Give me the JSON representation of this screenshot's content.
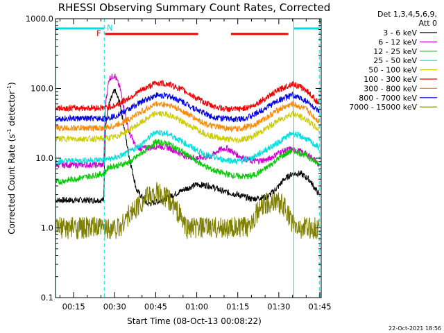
{
  "chart_data": {
    "type": "line",
    "title": "RHESSI Observing Summary Count Rates, Corrected",
    "xlabel": "Start Time (08-Oct-13 00:08:22)",
    "ylabel": "Corrected Count Rate (s",
    "ylabel_sup1": "-1",
    "ylabel_mid": " detector",
    "ylabel_sup2": "-1",
    "ylabel_end": ")",
    "yscale": "log",
    "ylim": [
      0.1,
      1000
    ],
    "yticks": [
      "1000.0",
      "100.0",
      "10.0",
      "1.0",
      "0.1"
    ],
    "ytick_values": [
      1000,
      100,
      10,
      1,
      0.1
    ],
    "xlim_minutes": [
      8.37,
      105.5
    ],
    "xticks": [
      "00:15",
      "00:30",
      "00:45",
      "01:00",
      "01:15",
      "01:30",
      "01:45"
    ],
    "xtick_minutes": [
      15,
      30,
      45,
      60,
      75,
      90,
      105
    ],
    "legend_header_1": "Det 1,3,4,5,6,9,",
    "legend_header_2": "Att 0",
    "legend_position": "right",
    "flags": {
      "n_label": "N",
      "f_label": "F",
      "night_intervals": [
        [
          8.4,
          26.2
        ],
        [
          95.5,
          104.8
        ]
      ],
      "flare_intervals": [
        [
          26.5,
          60.5
        ],
        [
          72.5,
          93.5
        ]
      ]
    },
    "day_boundaries": [
      8.4,
      26.2,
      95.5,
      104.8
    ],
    "series": [
      {
        "name": "3 - 6 keV",
        "color": "#000000",
        "points": [
          [
            8.4,
            2.5
          ],
          [
            26,
            2.5
          ],
          [
            26.6,
            30
          ],
          [
            28,
            60
          ],
          [
            30,
            95
          ],
          [
            32,
            60
          ],
          [
            35,
            12
          ],
          [
            38,
            3.5
          ],
          [
            42,
            2.2
          ],
          [
            46,
            2.4
          ],
          [
            50,
            2.8
          ],
          [
            55,
            3.5
          ],
          [
            60,
            4.2
          ],
          [
            65,
            4.0
          ],
          [
            70,
            3.3
          ],
          [
            75,
            3.0
          ],
          [
            80,
            2.6
          ],
          [
            86,
            2.8
          ],
          [
            90,
            4.0
          ],
          [
            92,
            5.0
          ],
          [
            95,
            6.0
          ],
          [
            98,
            6.0
          ],
          [
            101,
            5.0
          ],
          [
            103,
            3.8
          ],
          [
            104.8,
            3.0
          ]
        ]
      },
      {
        "name": "6 - 12 keV",
        "color": "#cc00cc",
        "points": [
          [
            8.4,
            8
          ],
          [
            26,
            8
          ],
          [
            26.6,
            60
          ],
          [
            28,
            140
          ],
          [
            30,
            155
          ],
          [
            32,
            100
          ],
          [
            35,
            25
          ],
          [
            38,
            14
          ],
          [
            42,
            14
          ],
          [
            46,
            15
          ],
          [
            50,
            14
          ],
          [
            55,
            11
          ],
          [
            60,
            10
          ],
          [
            65,
            10.5
          ],
          [
            68,
            13
          ],
          [
            71,
            14
          ],
          [
            75,
            11
          ],
          [
            80,
            9
          ],
          [
            86,
            9.5
          ],
          [
            90,
            12
          ],
          [
            94,
            13.5
          ],
          [
            98,
            12.5
          ],
          [
            101,
            11
          ],
          [
            103,
            9.5
          ],
          [
            104.8,
            8
          ]
        ]
      },
      {
        "name": "12 - 25 keV",
        "color": "#00cc00",
        "points": [
          [
            8.4,
            4.5
          ],
          [
            26,
            6
          ],
          [
            28,
            7.5
          ],
          [
            32,
            8
          ],
          [
            36,
            9
          ],
          [
            40,
            12
          ],
          [
            45,
            17
          ],
          [
            50,
            16
          ],
          [
            55,
            12
          ],
          [
            60,
            9
          ],
          [
            65,
            7
          ],
          [
            70,
            6
          ],
          [
            75,
            5.5
          ],
          [
            80,
            5.5
          ],
          [
            85,
            7
          ],
          [
            90,
            10
          ],
          [
            95,
            13
          ],
          [
            100,
            11
          ],
          [
            104.8,
            8
          ]
        ]
      },
      {
        "name": "25 - 50 keV",
        "color": "#00dddd",
        "points": [
          [
            8.4,
            9
          ],
          [
            26,
            9.5
          ],
          [
            30,
            10
          ],
          [
            35,
            12
          ],
          [
            40,
            16
          ],
          [
            45,
            24
          ],
          [
            50,
            22
          ],
          [
            55,
            17
          ],
          [
            60,
            13
          ],
          [
            65,
            10.5
          ],
          [
            70,
            9.5
          ],
          [
            75,
            9
          ],
          [
            80,
            10
          ],
          [
            85,
            13
          ],
          [
            90,
            17
          ],
          [
            95,
            23
          ],
          [
            100,
            19
          ],
          [
            104.8,
            14
          ]
        ]
      },
      {
        "name": "50 - 100 keV",
        "color": "#cccc00",
        "points": [
          [
            8.4,
            19
          ],
          [
            26,
            19
          ],
          [
            30,
            20
          ],
          [
            35,
            25
          ],
          [
            40,
            33
          ],
          [
            45,
            44
          ],
          [
            50,
            42
          ],
          [
            55,
            33
          ],
          [
            60,
            26
          ],
          [
            65,
            21
          ],
          [
            70,
            19
          ],
          [
            75,
            18
          ],
          [
            80,
            20
          ],
          [
            85,
            26
          ],
          [
            90,
            35
          ],
          [
            95,
            44
          ],
          [
            100,
            36
          ],
          [
            104.8,
            25
          ]
        ]
      },
      {
        "name": "100 - 300 keV",
        "color": "#ee0000",
        "points": [
          [
            8.4,
            52
          ],
          [
            26,
            53
          ],
          [
            30,
            56
          ],
          [
            35,
            72
          ],
          [
            40,
            95
          ],
          [
            45,
            120
          ],
          [
            50,
            115
          ],
          [
            55,
            95
          ],
          [
            60,
            72
          ],
          [
            65,
            57
          ],
          [
            70,
            51
          ],
          [
            75,
            50
          ],
          [
            80,
            55
          ],
          [
            85,
            72
          ],
          [
            90,
            95
          ],
          [
            95,
            118
          ],
          [
            100,
            95
          ],
          [
            104.8,
            60
          ]
        ]
      },
      {
        "name": "300 - 800 keV",
        "color": "#ff8800",
        "points": [
          [
            8.4,
            27
          ],
          [
            26,
            27
          ],
          [
            30,
            29
          ],
          [
            35,
            36
          ],
          [
            40,
            47
          ],
          [
            45,
            60
          ],
          [
            50,
            58
          ],
          [
            55,
            47
          ],
          [
            60,
            36
          ],
          [
            65,
            29
          ],
          [
            70,
            27
          ],
          [
            75,
            26
          ],
          [
            80,
            29
          ],
          [
            85,
            37
          ],
          [
            90,
            50
          ],
          [
            95,
            60
          ],
          [
            100,
            50
          ],
          [
            104.8,
            33
          ]
        ]
      },
      {
        "name": "800 - 7000 keV",
        "color": "#0000dd",
        "points": [
          [
            8.4,
            37
          ],
          [
            26,
            37
          ],
          [
            30,
            40
          ],
          [
            35,
            50
          ],
          [
            40,
            65
          ],
          [
            45,
            80
          ],
          [
            50,
            78
          ],
          [
            55,
            64
          ],
          [
            60,
            50
          ],
          [
            65,
            40
          ],
          [
            70,
            37
          ],
          [
            75,
            36
          ],
          [
            80,
            40
          ],
          [
            85,
            52
          ],
          [
            90,
            68
          ],
          [
            95,
            80
          ],
          [
            100,
            67
          ],
          [
            104.8,
            45
          ]
        ]
      },
      {
        "name": "7000 - 15000 keV",
        "color": "#808000",
        "points": [
          [
            8.4,
            1.0
          ],
          [
            32,
            1.0
          ],
          [
            34,
            1.4
          ],
          [
            36,
            1.6
          ],
          [
            38,
            2.0
          ],
          [
            41,
            2.6
          ],
          [
            45,
            3.2
          ],
          [
            49,
            2.7
          ],
          [
            52,
            2.0
          ],
          [
            54,
            1.5
          ],
          [
            56,
            1.0
          ],
          [
            78,
            1.0
          ],
          [
            80,
            1.3
          ],
          [
            83,
            1.8
          ],
          [
            86,
            2.3
          ],
          [
            89,
            2.5
          ],
          [
            92,
            2.0
          ],
          [
            94,
            1.4
          ],
          [
            96,
            1.0
          ],
          [
            104.8,
            1.0
          ]
        ]
      }
    ]
  },
  "footer_date": "22-Oct-2021 18:56"
}
